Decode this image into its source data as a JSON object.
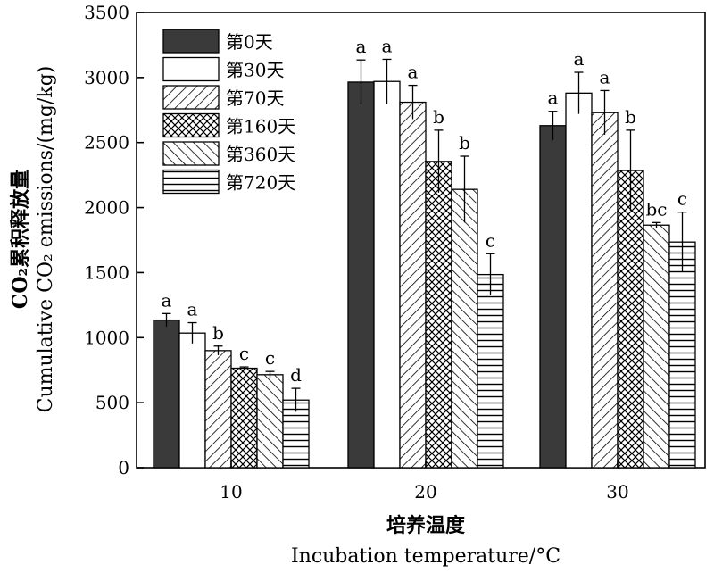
{
  "chart_data": {
    "type": "bar",
    "categories": [
      "10",
      "20",
      "30"
    ],
    "series": [
      {
        "name": "第0天",
        "values": [
          1135,
          2965,
          2630
        ],
        "errors": [
          50,
          170,
          110
        ],
        "labels": [
          "a",
          "a",
          "a"
        ]
      },
      {
        "name": "第30天",
        "values": [
          1035,
          2970,
          2880
        ],
        "errors": [
          80,
          170,
          160
        ],
        "labels": [
          "a",
          "a",
          "a"
        ]
      },
      {
        "name": "第70天",
        "values": [
          900,
          2810,
          2730
        ],
        "errors": [
          35,
          130,
          170
        ],
        "labels": [
          "b",
          "a",
          "a"
        ]
      },
      {
        "name": "第160天",
        "values": [
          765,
          2355,
          2285
        ],
        "errors": [
          10,
          240,
          310
        ],
        "labels": [
          "c",
          "b",
          "b"
        ]
      },
      {
        "name": "第360天",
        "values": [
          715,
          2140,
          1865
        ],
        "errors": [
          25,
          255,
          20
        ],
        "labels": [
          "c",
          "b",
          "bc"
        ]
      },
      {
        "name": "第720天",
        "values": [
          520,
          1485,
          1735
        ],
        "errors": [
          90,
          160,
          230
        ],
        "labels": [
          "d",
          "c",
          "c"
        ]
      }
    ],
    "ylim": [
      0,
      3500
    ],
    "yticks": [
      "0",
      "500",
      "1000",
      "1500",
      "2000",
      "2500",
      "3000",
      "3500"
    ],
    "ylabel_cn": "CO₂累积释放量",
    "ylabel_en": "Cumulative CO₂ emissions/(mg/kg)",
    "xlabel_cn": "培养温度",
    "xlabel_en": "Incubation temperature/°C",
    "legend_position": "top-left",
    "grid": false,
    "patterns": [
      "solid-dark",
      "white",
      "diagonal-right",
      "crosshatch",
      "diagonal-left",
      "horizontal"
    ]
  }
}
